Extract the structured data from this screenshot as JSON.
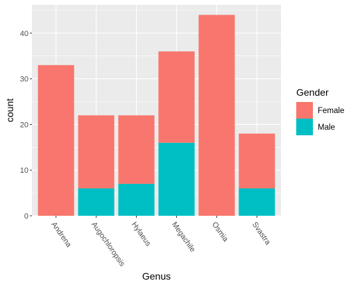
{
  "chart_data": {
    "type": "bar",
    "stacked": true,
    "categories": [
      "Andrena",
      "Augochloropsis",
      "Hylaeus",
      "Megachile",
      "Osmia",
      "Svastra"
    ],
    "series": [
      {
        "name": "Female",
        "values": [
          33,
          16,
          15,
          20,
          44,
          12
        ],
        "color": "#F8766D"
      },
      {
        "name": "Male",
        "values": [
          0,
          6,
          7,
          16,
          0,
          6
        ],
        "color": "#00BFC4"
      }
    ],
    "xlabel": "Genus",
    "ylabel": "count",
    "ylim": [
      0,
      46.2
    ],
    "yticks": [
      0,
      10,
      20,
      30,
      40
    ],
    "grid": true,
    "panel_background": "#EBEBEB",
    "grid_color": "#FFFFFF",
    "x_tick_rotation_deg": 55,
    "legend": {
      "title": "Gender",
      "position": "right",
      "entries": [
        "Female",
        "Male"
      ]
    }
  }
}
